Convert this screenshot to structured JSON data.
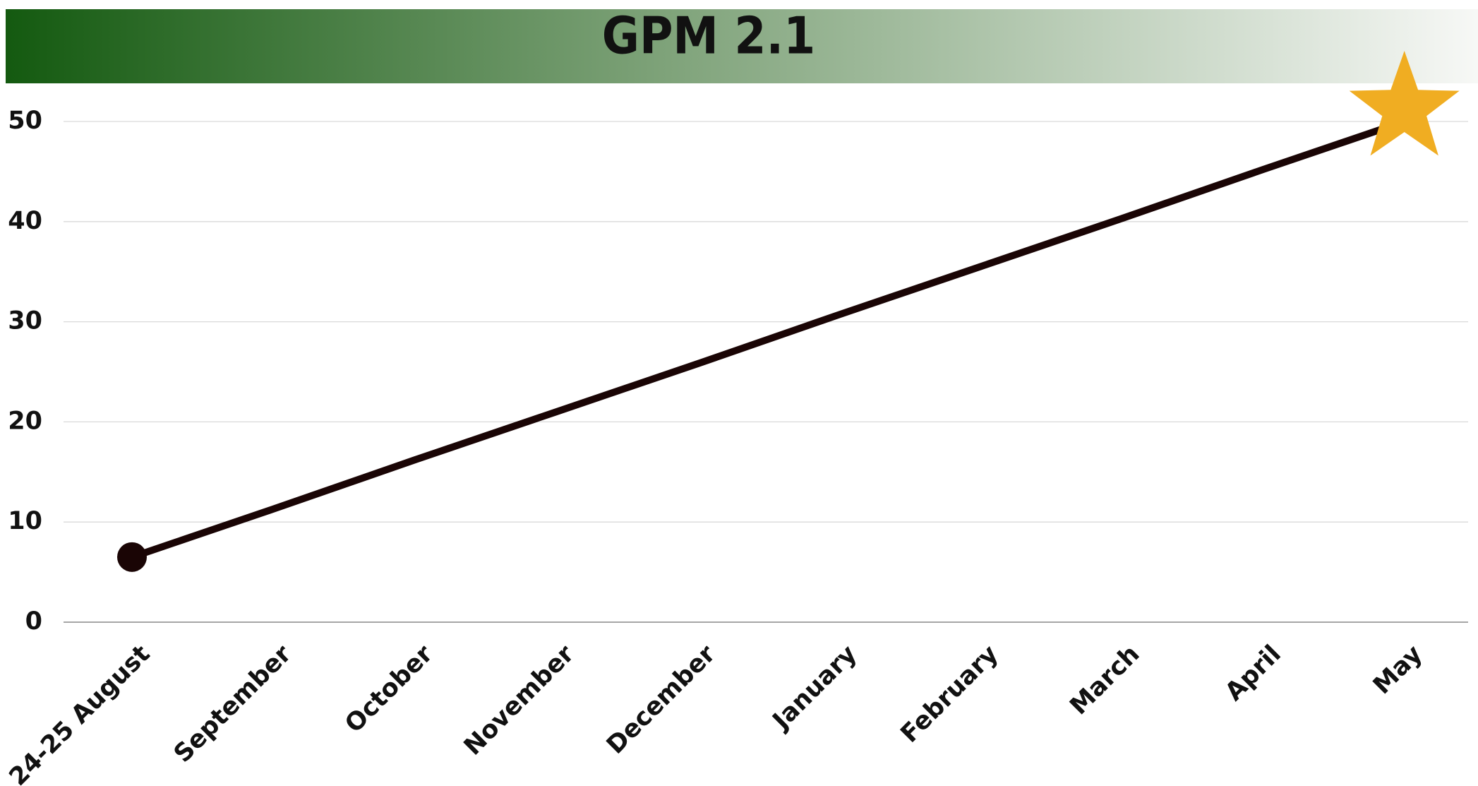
{
  "chart_data": {
    "type": "line",
    "title": "GPM 2.1",
    "categories": [
      "24-25 August",
      "September",
      "October",
      "November",
      "December",
      "January",
      "February",
      "March",
      "April",
      "May"
    ],
    "series": [
      {
        "name": "GPM 2.1",
        "color": "#1a0505",
        "values": [
          6.5,
          11.3,
          16.2,
          21.0,
          25.8,
          30.7,
          35.5,
          40.3,
          45.2,
          50
        ]
      }
    ],
    "start_marker": "circle",
    "end_marker": "star",
    "end_marker_color": "#f0ad22",
    "ylim": [
      0,
      50
    ],
    "yticks": [
      0,
      10,
      20,
      30,
      40,
      50
    ],
    "grid": true
  }
}
